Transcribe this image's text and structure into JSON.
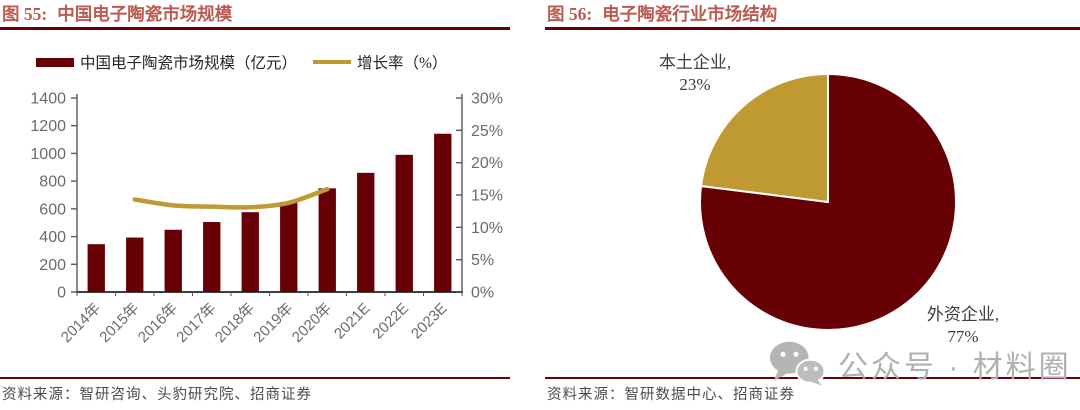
{
  "colors": {
    "maroon": "#670004",
    "gold": "#bf9a33",
    "figure_title": "#bb5b50",
    "axis_text": "#6a6a6a",
    "source_text": "#4c4c4c",
    "watermark": "#b0b0b0"
  },
  "panels": [
    {
      "figure_label": "图 55:",
      "title": "中国电子陶瓷市场规模",
      "legend": [
        {
          "label": "中国电子陶瓷市场规模（亿元）",
          "marker": "bar"
        },
        {
          "label": "增长率（%）",
          "marker": "line"
        }
      ],
      "source": "资料来源：智研咨询、头豹研究院、招商证券"
    },
    {
      "figure_label": "图 56:",
      "title": "电子陶瓷行业市场结构",
      "source": "资料来源：智研数据中心、招商证券"
    }
  ],
  "watermark": {
    "icon": "wechat-icon",
    "text": "公众号 · 材料圈"
  },
  "chart_data": [
    {
      "type": "bar",
      "title": "中国电子陶瓷市场规模",
      "categories": [
        "2014年",
        "2015年",
        "2016年",
        "2017年",
        "2018年",
        "2019年",
        "2020年",
        "2021E",
        "2022E",
        "2023E"
      ],
      "series": [
        {
          "name": "中国电子陶瓷市场规模（亿元）",
          "type": "bar",
          "axis": "left",
          "color": "#670004",
          "values": [
            345,
            393,
            449,
            505,
            576,
            650,
            748,
            860,
            990,
            1142
          ]
        },
        {
          "name": "增长率（%）",
          "type": "line",
          "axis": "right",
          "color": "#bf9a33",
          "x": [
            "2015年",
            "2016年",
            "2017年",
            "2018年",
            "2019年",
            "2020年"
          ],
          "values": [
            14.3,
            13.4,
            13.2,
            13.1,
            13.8,
            15.9
          ]
        }
      ],
      "left_axis": {
        "min": 0,
        "max": 1400,
        "ticks": [
          "0",
          "200",
          "400",
          "600",
          "800",
          "1000",
          "1200",
          "1400"
        ]
      },
      "right_axis": {
        "min": 0,
        "max": 30,
        "ticks": [
          "0%",
          "5%",
          "10%",
          "15%",
          "20%",
          "25%",
          "30%"
        ]
      },
      "grid": false,
      "legend_position": "top",
      "xlabel_rotation_deg": -45
    },
    {
      "type": "pie",
      "title": "电子陶瓷行业市场结构",
      "start_angle_deg": -90,
      "direction": "clockwise",
      "segments": [
        {
          "label": "外资企业",
          "value": 77,
          "label_line1": "外资企业,",
          "label_line2": "77%",
          "color": "#670004"
        },
        {
          "label": "本土企业",
          "value": 23,
          "label_line1": "本土企业,",
          "label_line2": "23%",
          "color": "#bf9a33"
        }
      ]
    }
  ]
}
